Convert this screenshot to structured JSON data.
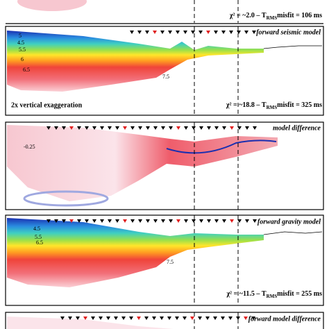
{
  "panels": [
    {
      "misfit": {
        "prefix": "χ² = ~2.0 – T",
        "subscript": "RMS",
        "suffix": "misfit = 106 ms"
      }
    },
    {
      "title": "forward seismic model",
      "contours": [
        "5",
        "4.5",
        "5.5",
        "6",
        "6.5",
        "7.5"
      ],
      "note": "2x vertical exaggeration",
      "misfit": {
        "prefix": "χ² = ~18.8 – T",
        "subscript": "RMS",
        "suffix": "misfit = 325 ms"
      }
    },
    {
      "title": "model difference",
      "contours": [
        "-0.25"
      ]
    },
    {
      "title": "forward gravity model",
      "contours": [
        "4.5",
        "5.5",
        "6.5",
        "7.5"
      ],
      "misfit": {
        "prefix": "χ² = ~11.5 – T",
        "subscript": "RMS",
        "suffix": "misfit = 255 ms"
      }
    },
    {
      "title": "forward model difference"
    }
  ]
}
